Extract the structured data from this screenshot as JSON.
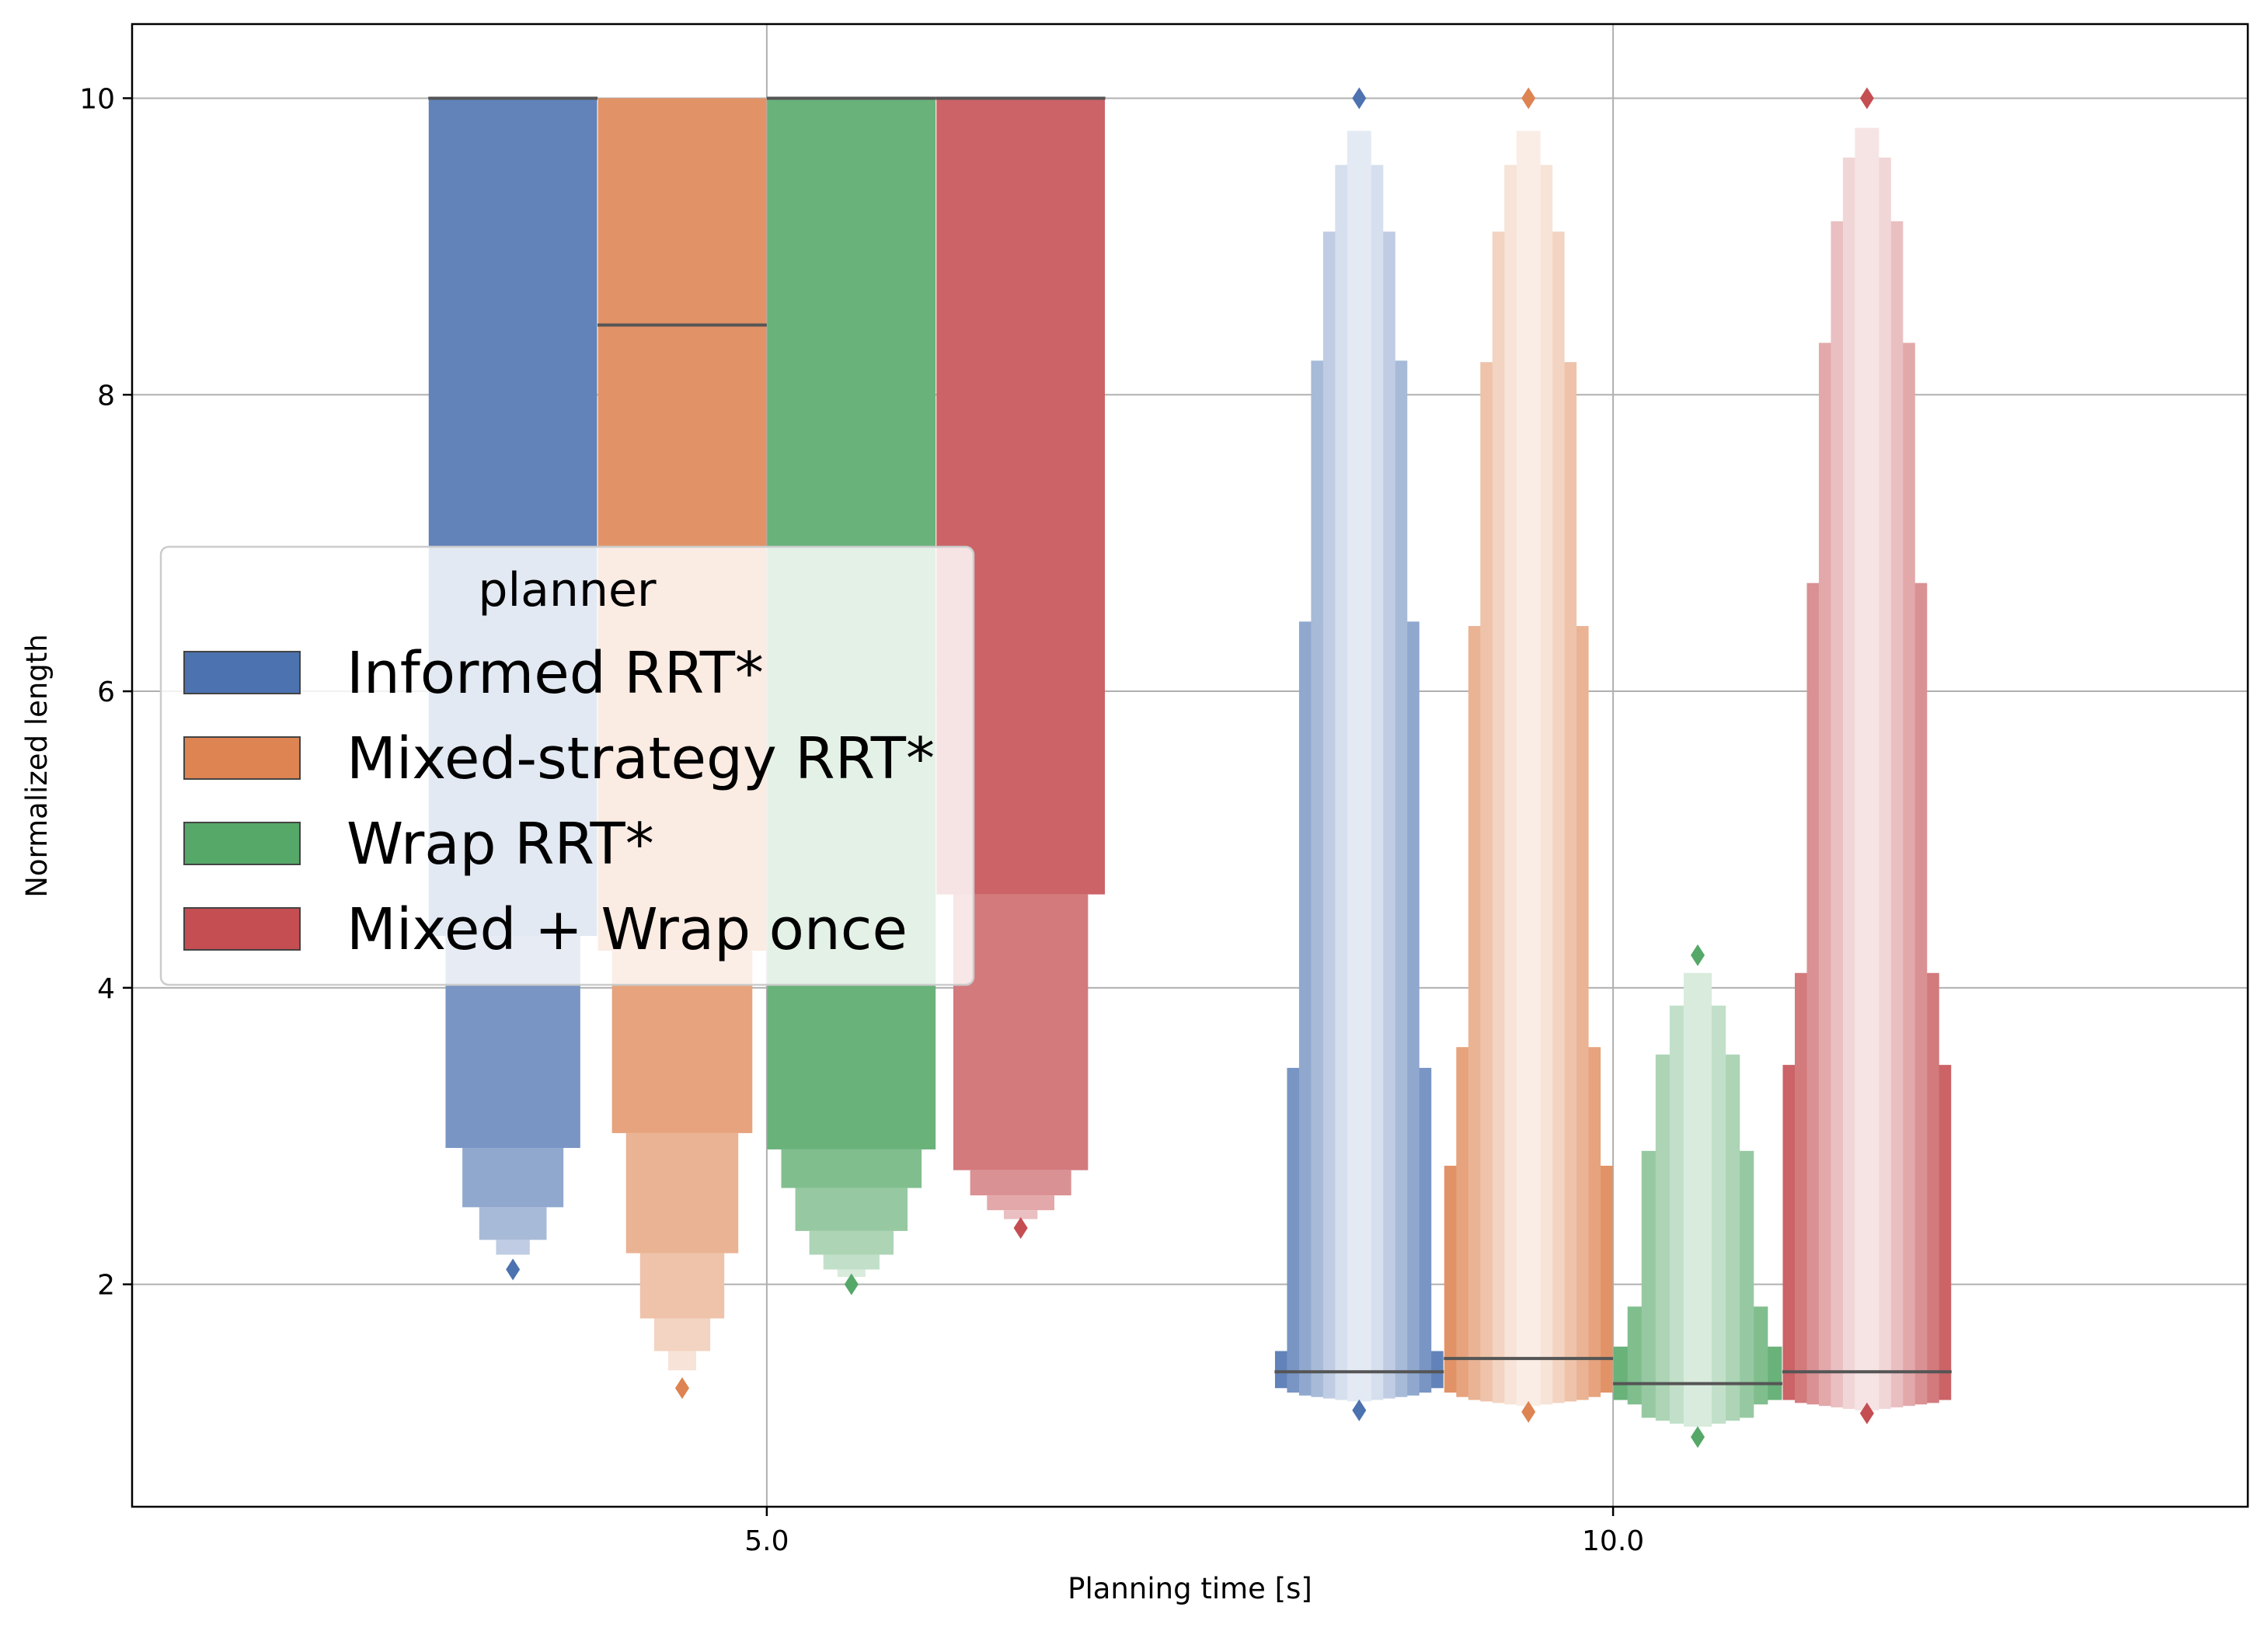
{
  "chart_data": {
    "type": "boxen",
    "title": "",
    "xlabel": "Planning time [s]",
    "ylabel": "Normalized length",
    "categories": [
      "5.0",
      "10.0"
    ],
    "ylim": [
      0.5,
      10.5
    ],
    "yticks": [
      2,
      4,
      6,
      8,
      10
    ],
    "grid": true,
    "legend": {
      "title": "planner",
      "placement": "center-left"
    },
    "series": [
      {
        "name": "Informed RRT*",
        "color": "#4c72b0",
        "groups": [
          {
            "category": "5.0",
            "median": 10.0,
            "boxes": [
              [
                4.35,
                10.0
              ],
              [
                2.92,
                4.35
              ],
              [
                2.52,
                2.92
              ],
              [
                2.3,
                2.52
              ],
              [
                2.2,
                2.3
              ]
            ],
            "outliers": [
              2.1
            ]
          },
          {
            "category": "10.0",
            "median": 1.41,
            "boxes": [
              [
                1.3,
                1.55
              ],
              [
                1.27,
                3.46
              ],
              [
                1.25,
                6.47
              ],
              [
                1.24,
                8.23
              ],
              [
                1.23,
                9.1
              ],
              [
                1.22,
                9.55
              ],
              [
                1.21,
                9.78
              ]
            ],
            "outliers": [
              1.15,
              10.0
            ]
          }
        ]
      },
      {
        "name": "Mixed-strategy RRT*",
        "color": "#dd8452",
        "groups": [
          {
            "category": "5.0",
            "median": 8.47,
            "boxes": [
              [
                4.25,
                10.0
              ],
              [
                3.02,
                4.25
              ],
              [
                2.21,
                3.02
              ],
              [
                1.77,
                2.21
              ],
              [
                1.55,
                1.77
              ],
              [
                1.42,
                1.55
              ]
            ],
            "outliers": [
              1.3
            ]
          },
          {
            "category": "10.0",
            "median": 1.5,
            "boxes": [
              [
                1.27,
                2.8
              ],
              [
                1.24,
                3.6
              ],
              [
                1.22,
                6.44
              ],
              [
                1.21,
                8.22
              ],
              [
                1.2,
                9.1
              ],
              [
                1.19,
                9.55
              ],
              [
                1.18,
                9.78
              ]
            ],
            "outliers": [
              1.14,
              10.0
            ]
          }
        ]
      },
      {
        "name": "Wrap RRT*",
        "color": "#55a868",
        "groups": [
          {
            "category": "5.0",
            "median": 10.0,
            "boxes": [
              [
                2.91,
                10.0
              ],
              [
                2.65,
                2.91
              ],
              [
                2.36,
                2.65
              ],
              [
                2.2,
                2.36
              ],
              [
                2.1,
                2.2
              ],
              [
                2.05,
                2.1
              ]
            ],
            "outliers": [
              2.0
            ]
          },
          {
            "category": "10.0",
            "median": 1.33,
            "boxes": [
              [
                1.22,
                1.58
              ],
              [
                1.19,
                1.85
              ],
              [
                1.1,
                2.9
              ],
              [
                1.08,
                3.55
              ],
              [
                1.06,
                3.88
              ],
              [
                1.04,
                4.1
              ]
            ],
            "outliers": [
              0.97,
              4.22
            ]
          }
        ]
      },
      {
        "name": "Mixed + Wrap once",
        "color": "#c44e52",
        "groups": [
          {
            "category": "5.0",
            "median": 10.0,
            "boxes": [
              [
                4.63,
                10.0
              ],
              [
                2.77,
                4.63
              ],
              [
                2.6,
                2.77
              ],
              [
                2.5,
                2.6
              ],
              [
                2.44,
                2.5
              ]
            ],
            "outliers": [
              2.38
            ]
          },
          {
            "category": "10.0",
            "median": 1.41,
            "boxes": [
              [
                1.22,
                3.48
              ],
              [
                1.2,
                4.1
              ],
              [
                1.19,
                6.73
              ],
              [
                1.18,
                8.35
              ],
              [
                1.17,
                9.17
              ],
              [
                1.16,
                9.6
              ],
              [
                1.15,
                9.8
              ]
            ],
            "outliers": [
              1.13,
              10.0
            ]
          }
        ]
      }
    ]
  }
}
